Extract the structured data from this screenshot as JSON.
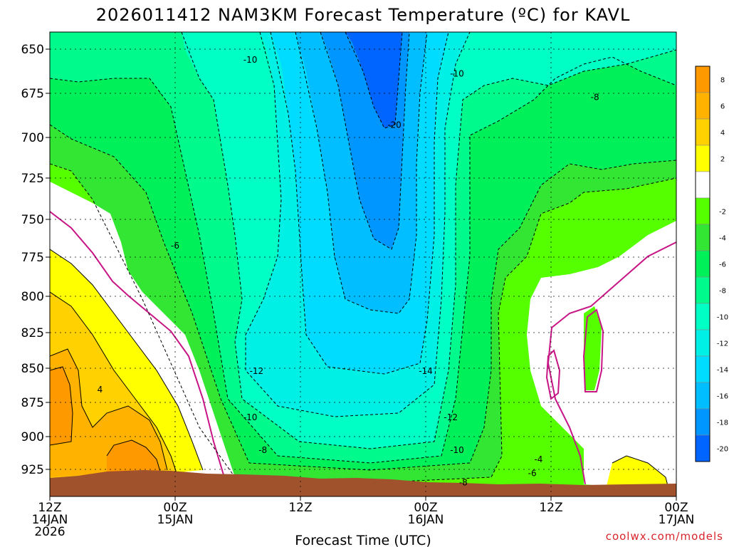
{
  "chart_data": {
    "type": "contour",
    "title": "2026011412 NAM3KM Forecast Temperature (ºC) for KAVL",
    "xlabel": "Forecast Time (UTC)",
    "ylabel": "",
    "y_axis": {
      "reversed": true,
      "ticks": [
        "650",
        "675",
        "700",
        "725",
        "750",
        "775",
        "800",
        "825",
        "850",
        "875",
        "900",
        "925"
      ]
    },
    "x_axis": {
      "ticks": [
        {
          "line1": "12Z",
          "line2": "14JAN",
          "line3": "2026"
        },
        {
          "line1": "00Z",
          "line2": "15JAN",
          "line3": ""
        },
        {
          "line1": "12Z",
          "line2": "",
          "line3": ""
        },
        {
          "line1": "00Z",
          "line2": "16JAN",
          "line3": ""
        },
        {
          "line1": "12Z",
          "line2": "",
          "line3": ""
        },
        {
          "line1": "00Z",
          "line2": "17JAN",
          "line3": ""
        }
      ]
    },
    "colorbar": [
      {
        "label": "8",
        "color": "#ff9900"
      },
      {
        "label": "6",
        "color": "#ffb300"
      },
      {
        "label": "4",
        "color": "#ffd100"
      },
      {
        "label": "2",
        "color": "#ffff00"
      },
      {
        "label": "",
        "color": "#ffffff"
      },
      {
        "label": "-2",
        "color": "#55ff00"
      },
      {
        "label": "-4",
        "color": "#33e633"
      },
      {
        "label": "-6",
        "color": "#00f05a"
      },
      {
        "label": "-8",
        "color": "#00fa8c"
      },
      {
        "label": "-10",
        "color": "#00ffc4"
      },
      {
        "label": "-12",
        "color": "#00f0e6"
      },
      {
        "label": "-14",
        "color": "#00dcff"
      },
      {
        "label": "-16",
        "color": "#00beff"
      },
      {
        "label": "-18",
        "color": "#0096ff"
      },
      {
        "label": "-20",
        "color": "#0064ff"
      }
    ],
    "contour_labels": [
      {
        "text": "-10",
        "x": 0.32,
        "y": 0.06
      },
      {
        "text": "-20",
        "x": 0.55,
        "y": 0.2
      },
      {
        "text": "-10",
        "x": 0.65,
        "y": 0.09
      },
      {
        "text": "-8",
        "x": 0.87,
        "y": 0.14
      },
      {
        "text": "-6",
        "x": 0.2,
        "y": 0.46
      },
      {
        "text": "4",
        "x": 0.08,
        "y": 0.77
      },
      {
        "text": "-12",
        "x": 0.33,
        "y": 0.73
      },
      {
        "text": "-14",
        "x": 0.6,
        "y": 0.73
      },
      {
        "text": "-10",
        "x": 0.32,
        "y": 0.83
      },
      {
        "text": "-12",
        "x": 0.64,
        "y": 0.83
      },
      {
        "text": "-8",
        "x": 0.34,
        "y": 0.9
      },
      {
        "text": "-10",
        "x": 0.65,
        "y": 0.9
      },
      {
        "text": "-8",
        "x": 0.66,
        "y": 0.97
      },
      {
        "text": "-4",
        "x": 0.78,
        "y": 0.92
      },
      {
        "text": "-6",
        "x": 0.77,
        "y": 0.95
      }
    ],
    "grid": true,
    "colors": {
      "terrain": "#a0522d",
      "freezing_line": "#c71585"
    }
  },
  "credit": "coolwx.com/models"
}
